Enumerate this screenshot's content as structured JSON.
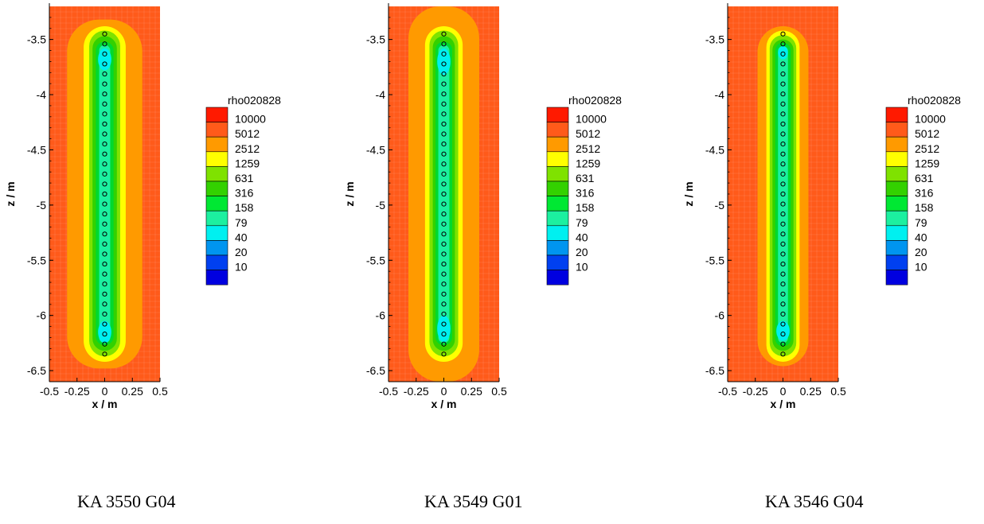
{
  "chart_data": [
    {
      "type": "contour",
      "caption": "KA 3550 G04",
      "xlabel": "x / m",
      "ylabel": "z / m",
      "xlim": [
        -0.5,
        0.5
      ],
      "ylim": [
        -6.6,
        -3.2
      ],
      "xticks": [
        -0.5,
        -0.25,
        0,
        0.25,
        0.5
      ],
      "xtick_labels": [
        "-0.5",
        "-0.25",
        "0",
        "0.25",
        "0.5"
      ],
      "yticks": [
        -3.5,
        -4,
        -4.5,
        -5,
        -5.5,
        -6,
        -6.5
      ],
      "ytick_labels": [
        "-3.5",
        "-4",
        "-4.5",
        "-5",
        "-5.5",
        "-6",
        "-6.5"
      ],
      "electrodes": {
        "x": 0,
        "z_start": -3.45,
        "z_end": -6.35,
        "count": 33
      },
      "zones": [
        {
          "level": "5012",
          "color": "#FF9A00",
          "half_width": 0.34,
          "z_top": -3.32,
          "z_bottom": -6.48
        },
        {
          "level": "2512",
          "color": "#FFFF00",
          "half_width": 0.19,
          "z_top": -3.38,
          "z_bottom": -6.42
        },
        {
          "level": "1259",
          "color": "#7FE200",
          "half_width": 0.14,
          "z_top": -3.42,
          "z_bottom": -6.37
        },
        {
          "level": "631",
          "color": "#33D100",
          "half_width": 0.11,
          "z_top": -3.47,
          "z_bottom": -6.32
        },
        {
          "level": "316",
          "color": "#00D92E",
          "half_width": 0.08,
          "z_top": -3.52,
          "z_bottom": -6.27
        },
        {
          "level": "158",
          "color": "#1CF0A0",
          "half_width": 0.05,
          "z_top": -3.55,
          "z_bottom": -6.25
        }
      ],
      "blobs": [
        {
          "level": "79",
          "color": "#00F0F0",
          "z_center": -3.68,
          "half_height": 0.1,
          "half_width": 0.06
        },
        {
          "level": "79",
          "color": "#00F0F0",
          "z_center": -6.15,
          "half_height": 0.1,
          "half_width": 0.06
        }
      ],
      "legend": {
        "title": "rho020828",
        "items": [
          {
            "label": "10000",
            "color": "#FF1A00"
          },
          {
            "label": "5012",
            "color": "#FF5A1A"
          },
          {
            "label": "2512",
            "color": "#FF9A00"
          },
          {
            "label": "1259",
            "color": "#FFFF00"
          },
          {
            "label": "631",
            "color": "#7FE200"
          },
          {
            "label": "316",
            "color": "#33D100"
          },
          {
            "label": "158",
            "color": "#00E833"
          },
          {
            "label": "79",
            "color": "#1CF0A0"
          },
          {
            "label": "40",
            "color": "#00F0F0"
          },
          {
            "label": "20",
            "color": "#0095F0"
          },
          {
            "label": "10",
            "color": "#0040F0"
          },
          {
            "label": "",
            "color": "#0000E0"
          }
        ]
      }
    },
    {
      "type": "contour",
      "caption": "KA 3549 G01",
      "xlabel": "x / m",
      "ylabel": "z / m",
      "xlim": [
        -0.5,
        0.5
      ],
      "ylim": [
        -6.6,
        -3.2
      ],
      "xticks": [
        -0.5,
        -0.25,
        0,
        0.25,
        0.5
      ],
      "xtick_labels": [
        "-0.5",
        "-0.25",
        "0",
        "0.25",
        "0.5"
      ],
      "yticks": [
        -3.5,
        -4,
        -4.5,
        -5,
        -5.5,
        -6,
        -6.5
      ],
      "ytick_labels": [
        "-3.5",
        "-4",
        "-4.5",
        "-5",
        "-5.5",
        "-6",
        "-6.5"
      ],
      "electrodes": {
        "x": 0,
        "z_start": -3.45,
        "z_end": -6.35,
        "count": 33
      },
      "zones": [
        {
          "level": "5012",
          "color": "#FF9A00",
          "half_width": 0.32,
          "z_top": -3.2,
          "z_bottom": -6.6
        },
        {
          "level": "2512",
          "color": "#FFFF00",
          "half_width": 0.17,
          "z_top": -3.38,
          "z_bottom": -6.42
        },
        {
          "level": "1259",
          "color": "#7FE200",
          "half_width": 0.13,
          "z_top": -3.42,
          "z_bottom": -6.37
        },
        {
          "level": "631",
          "color": "#33D100",
          "half_width": 0.1,
          "z_top": -3.47,
          "z_bottom": -6.32
        },
        {
          "level": "316",
          "color": "#00D92E",
          "half_width": 0.075,
          "z_top": -3.52,
          "z_bottom": -6.27
        },
        {
          "level": "158",
          "color": "#1CF0A0",
          "half_width": 0.05,
          "z_top": -3.55,
          "z_bottom": -6.25
        }
      ],
      "blobs": [
        {
          "level": "79",
          "color": "#00F0F0",
          "z_center": -3.7,
          "half_height": 0.12,
          "half_width": 0.06
        },
        {
          "level": "79",
          "color": "#00F0F0",
          "z_center": -6.12,
          "half_height": 0.12,
          "half_width": 0.06
        }
      ],
      "legend": {
        "title": "rho020828",
        "items": [
          {
            "label": "10000",
            "color": "#FF1A00"
          },
          {
            "label": "5012",
            "color": "#FF5A1A"
          },
          {
            "label": "2512",
            "color": "#FF9A00"
          },
          {
            "label": "1259",
            "color": "#FFFF00"
          },
          {
            "label": "631",
            "color": "#7FE200"
          },
          {
            "label": "316",
            "color": "#33D100"
          },
          {
            "label": "158",
            "color": "#00E833"
          },
          {
            "label": "79",
            "color": "#1CF0A0"
          },
          {
            "label": "40",
            "color": "#00F0F0"
          },
          {
            "label": "20",
            "color": "#0095F0"
          },
          {
            "label": "10",
            "color": "#0040F0"
          },
          {
            "label": "",
            "color": "#0000E0"
          }
        ]
      }
    },
    {
      "type": "contour",
      "caption": "KA 3546 G04",
      "xlabel": "x / m",
      "ylabel": "z / m",
      "xlim": [
        -0.5,
        0.5
      ],
      "ylim": [
        -6.6,
        -3.2
      ],
      "xticks": [
        -0.5,
        -0.25,
        0,
        0.25,
        0.5
      ],
      "xtick_labels": [
        "-0.5",
        "-0.25",
        "0",
        "0.25",
        "0.5"
      ],
      "yticks": [
        -3.5,
        -4,
        -4.5,
        -5,
        -5.5,
        -6,
        -6.5
      ],
      "ytick_labels": [
        "-3.5",
        "-4",
        "-4.5",
        "-5",
        "-5.5",
        "-6",
        "-6.5"
      ],
      "electrodes": {
        "x": 0,
        "z_start": -3.45,
        "z_end": -6.35,
        "count": 33
      },
      "zones": [
        {
          "level": "5012",
          "color": "#FF9A00",
          "half_width": 0.23,
          "z_top": -3.38,
          "z_bottom": -6.46
        },
        {
          "level": "2512",
          "color": "#FFFF00",
          "half_width": 0.15,
          "z_top": -3.42,
          "z_bottom": -6.42
        },
        {
          "level": "1259",
          "color": "#7FE200",
          "half_width": 0.12,
          "z_top": -3.46,
          "z_bottom": -6.37
        },
        {
          "level": "631",
          "color": "#33D100",
          "half_width": 0.095,
          "z_top": -3.5,
          "z_bottom": -6.32
        },
        {
          "level": "316",
          "color": "#00D92E",
          "half_width": 0.07,
          "z_top": -3.53,
          "z_bottom": -6.28
        },
        {
          "level": "158",
          "color": "#1CF0A0",
          "half_width": 0.045,
          "z_top": -3.56,
          "z_bottom": -6.25
        }
      ],
      "blobs": [
        {
          "level": "79",
          "color": "#00F0F0",
          "z_center": -3.62,
          "half_height": 0.06,
          "half_width": 0.045
        },
        {
          "level": "79",
          "color": "#00F0F0",
          "z_center": -6.14,
          "half_height": 0.09,
          "half_width": 0.06
        }
      ],
      "legend": {
        "title": "rho020828",
        "items": [
          {
            "label": "10000",
            "color": "#FF1A00"
          },
          {
            "label": "5012",
            "color": "#FF5A1A"
          },
          {
            "label": "2512",
            "color": "#FF9A00"
          },
          {
            "label": "1259",
            "color": "#FFFF00"
          },
          {
            "label": "631",
            "color": "#7FE200"
          },
          {
            "label": "316",
            "color": "#33D100"
          },
          {
            "label": "158",
            "color": "#00E833"
          },
          {
            "label": "79",
            "color": "#1CF0A0"
          },
          {
            "label": "40",
            "color": "#00F0F0"
          },
          {
            "label": "20",
            "color": "#0095F0"
          },
          {
            "label": "10",
            "color": "#0040F0"
          },
          {
            "label": "",
            "color": "#0000E0"
          }
        ]
      }
    }
  ],
  "background_color": "#FF5A1A"
}
